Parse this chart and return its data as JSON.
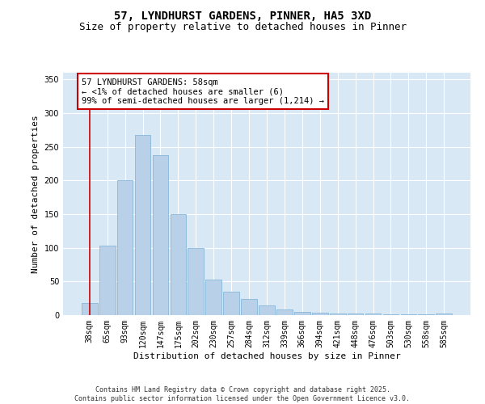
{
  "title": "57, LYNDHURST GARDENS, PINNER, HA5 3XD",
  "subtitle": "Size of property relative to detached houses in Pinner",
  "xlabel": "Distribution of detached houses by size in Pinner",
  "ylabel": "Number of detached properties",
  "categories": [
    "38sqm",
    "65sqm",
    "93sqm",
    "120sqm",
    "147sqm",
    "175sqm",
    "202sqm",
    "230sqm",
    "257sqm",
    "284sqm",
    "312sqm",
    "339sqm",
    "366sqm",
    "394sqm",
    "421sqm",
    "448sqm",
    "476sqm",
    "503sqm",
    "530sqm",
    "558sqm",
    "585sqm"
  ],
  "values": [
    18,
    103,
    200,
    268,
    238,
    150,
    100,
    53,
    35,
    24,
    14,
    8,
    5,
    4,
    3,
    2,
    2,
    1,
    1,
    1,
    2
  ],
  "bar_color": "#b8d0e8",
  "bar_edge_color": "#7aafd4",
  "annotation_text": "57 LYNDHURST GARDENS: 58sqm\n← <1% of detached houses are smaller (6)\n99% of semi-detached houses are larger (1,214) →",
  "red_line_x": 0.5,
  "ylim": [
    0,
    360
  ],
  "yticks": [
    0,
    50,
    100,
    150,
    200,
    250,
    300,
    350
  ],
  "background_color": "#d8e8f5",
  "grid_color": "#ffffff",
  "footer": "Contains HM Land Registry data © Crown copyright and database right 2025.\nContains public sector information licensed under the Open Government Licence v3.0.",
  "title_fontsize": 10,
  "subtitle_fontsize": 9,
  "axis_label_fontsize": 8,
  "tick_fontsize": 7,
  "annotation_fontsize": 7.5,
  "footer_fontsize": 6
}
